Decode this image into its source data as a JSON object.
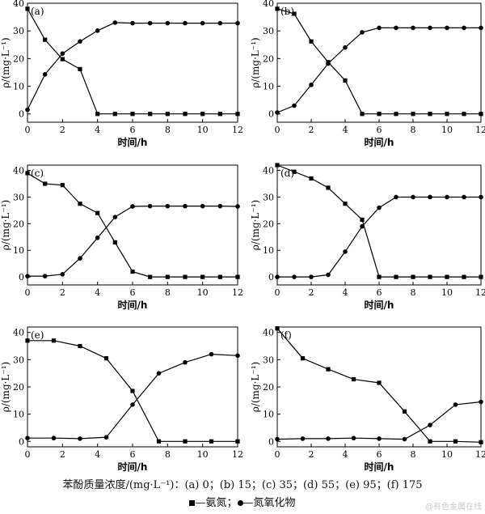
{
  "chart_data": [
    {
      "type": "line",
      "panel_label": "(a)",
      "xlabel": "时间/h",
      "ylabel": "ρ/(mg·L⁻¹)",
      "xlim": [
        0,
        12
      ],
      "ylim": [
        -3,
        40
      ],
      "xticks": [
        0,
        2,
        4,
        6,
        8,
        10,
        12
      ],
      "yticks": [
        0,
        10,
        20,
        30,
        40
      ],
      "series": [
        {
          "marker": "square",
          "x": [
            0,
            1,
            2,
            3,
            4,
            5,
            6,
            7,
            8,
            9,
            10,
            11,
            12
          ],
          "y": [
            38,
            26.8,
            19.8,
            16.2,
            0,
            0,
            0,
            0,
            0,
            0,
            0,
            0,
            0
          ]
        },
        {
          "marker": "circle",
          "x": [
            0,
            1,
            2,
            3,
            4,
            5,
            6,
            7,
            8,
            9,
            10,
            11,
            12
          ],
          "y": [
            1.5,
            14.3,
            21.8,
            26.2,
            30.1,
            33,
            32.8,
            32.8,
            32.8,
            32.8,
            32.8,
            32.8,
            32.8
          ]
        }
      ]
    },
    {
      "type": "line",
      "panel_label": "(b)",
      "xlabel": "时间/h",
      "ylabel": "ρ/(mg·L⁻¹)",
      "xlim": [
        0,
        12
      ],
      "ylim": [
        -3,
        40
      ],
      "xticks": [
        0,
        2,
        4,
        6,
        8,
        10,
        12
      ],
      "yticks": [
        0,
        10,
        20,
        30,
        40
      ],
      "series": [
        {
          "marker": "square",
          "x": [
            0,
            1,
            2,
            3,
            4,
            5,
            6,
            7,
            8,
            9,
            10,
            11,
            12
          ],
          "y": [
            38,
            36.2,
            26.2,
            18.7,
            12.1,
            0,
            0,
            0,
            0,
            0,
            0,
            0,
            0
          ]
        },
        {
          "marker": "circle",
          "x": [
            0,
            1,
            2,
            3,
            4,
            5,
            6,
            7,
            8,
            9,
            10,
            11,
            12
          ],
          "y": [
            0.5,
            3,
            10.5,
            18.2,
            24,
            29.5,
            31.1,
            31.1,
            31.1,
            31.1,
            31.1,
            31.1,
            31.1
          ]
        }
      ]
    },
    {
      "type": "line",
      "panel_label": "(c)",
      "xlabel": "时间/h",
      "ylabel": "ρ/(mg·L⁻¹)",
      "xlim": [
        0,
        12
      ],
      "ylim": [
        -3,
        42
      ],
      "xticks": [
        0,
        2,
        4,
        6,
        8,
        10,
        12
      ],
      "yticks": [
        0,
        10,
        20,
        30,
        40
      ],
      "series": [
        {
          "marker": "square",
          "x": [
            0,
            1,
            2,
            3,
            4,
            5,
            6,
            7,
            8,
            9,
            10,
            11,
            12
          ],
          "y": [
            39,
            35,
            34.5,
            27.5,
            24,
            13,
            2,
            0,
            0,
            0,
            0,
            0,
            0
          ]
        },
        {
          "marker": "circle",
          "x": [
            0,
            1,
            2,
            3,
            4,
            5,
            6,
            7,
            8,
            9,
            10,
            11,
            12
          ],
          "y": [
            0.3,
            0.3,
            1,
            7,
            14.7,
            22.5,
            26.5,
            26.6,
            26.6,
            26.6,
            26.6,
            26.6,
            26.5
          ]
        }
      ]
    },
    {
      "type": "line",
      "panel_label": "(d)",
      "xlabel": "时间/h",
      "ylabel": "ρ/(mg·L⁻¹)",
      "xlim": [
        0,
        12
      ],
      "ylim": [
        -3,
        42
      ],
      "xticks": [
        0,
        2,
        4,
        6,
        8,
        10,
        12
      ],
      "yticks": [
        0,
        10,
        20,
        30,
        40
      ],
      "series": [
        {
          "marker": "square",
          "x": [
            0,
            1,
            2,
            3,
            4,
            5,
            6,
            7,
            8,
            9,
            10,
            11,
            12
          ],
          "y": [
            42,
            39.5,
            37,
            33.5,
            27.5,
            21.5,
            0,
            0,
            0,
            0,
            0,
            0,
            0
          ]
        },
        {
          "marker": "circle",
          "x": [
            0,
            1,
            2,
            3,
            4,
            5,
            6,
            7,
            8,
            9,
            10,
            11,
            12
          ],
          "y": [
            0,
            0,
            0,
            0.8,
            9.5,
            19,
            26,
            30,
            30,
            30,
            30,
            30,
            30
          ]
        }
      ]
    },
    {
      "type": "line",
      "panel_label": "(e)",
      "xlabel": "时间/h",
      "ylabel": "ρ/(mg·L⁻¹)",
      "xlim": [
        0,
        12
      ],
      "ylim": [
        -2,
        42
      ],
      "xticks": [
        0,
        2,
        4,
        6,
        8,
        10,
        12
      ],
      "yticks": [
        0,
        10,
        20,
        30,
        40
      ],
      "series": [
        {
          "marker": "square",
          "x": [
            0,
            1.5,
            3,
            4.5,
            6,
            7.5,
            9,
            10.5,
            12
          ],
          "y": [
            37,
            37,
            35,
            30.5,
            18.5,
            0,
            0,
            0,
            0
          ]
        },
        {
          "marker": "circle",
          "x": [
            0,
            1.5,
            3,
            4.5,
            6,
            7.5,
            9,
            10.5,
            12
          ],
          "y": [
            1.2,
            1.2,
            1,
            1.5,
            13.5,
            25,
            29,
            32,
            31.5
          ]
        }
      ]
    },
    {
      "type": "line",
      "panel_label": "(f)",
      "xlabel": "时间/h",
      "ylabel": "ρ/(mg·L⁻¹)",
      "xlim": [
        0,
        12
      ],
      "ylim": [
        -2,
        42
      ],
      "xticks": [
        0,
        2,
        4,
        6,
        8,
        10,
        12
      ],
      "yticks": [
        0,
        10,
        20,
        30,
        40
      ],
      "series": [
        {
          "marker": "square",
          "x": [
            0,
            1.5,
            3,
            4.5,
            6,
            7.5,
            9,
            10.5,
            12
          ],
          "y": [
            41.5,
            30.5,
            26.5,
            22.8,
            21.5,
            11,
            0,
            0,
            -0.3
          ]
        },
        {
          "marker": "circle",
          "x": [
            0,
            1.5,
            3,
            4.5,
            6,
            7.5,
            9,
            10.5,
            12
          ],
          "y": [
            0.8,
            1,
            1,
            1.2,
            1,
            0.8,
            6,
            13.5,
            14.5
          ]
        }
      ]
    }
  ],
  "caption": {
    "concentration_line": "苯酚质量浓度/(mg·L⁻¹)：(a) 0；(b) 15；(c) 35；(d) 55；(e) 95；(f) 175",
    "legend_ammonia": "—氨氮；",
    "legend_nitrate": "—氮氧化物"
  },
  "watermark": "@有色金属在线"
}
